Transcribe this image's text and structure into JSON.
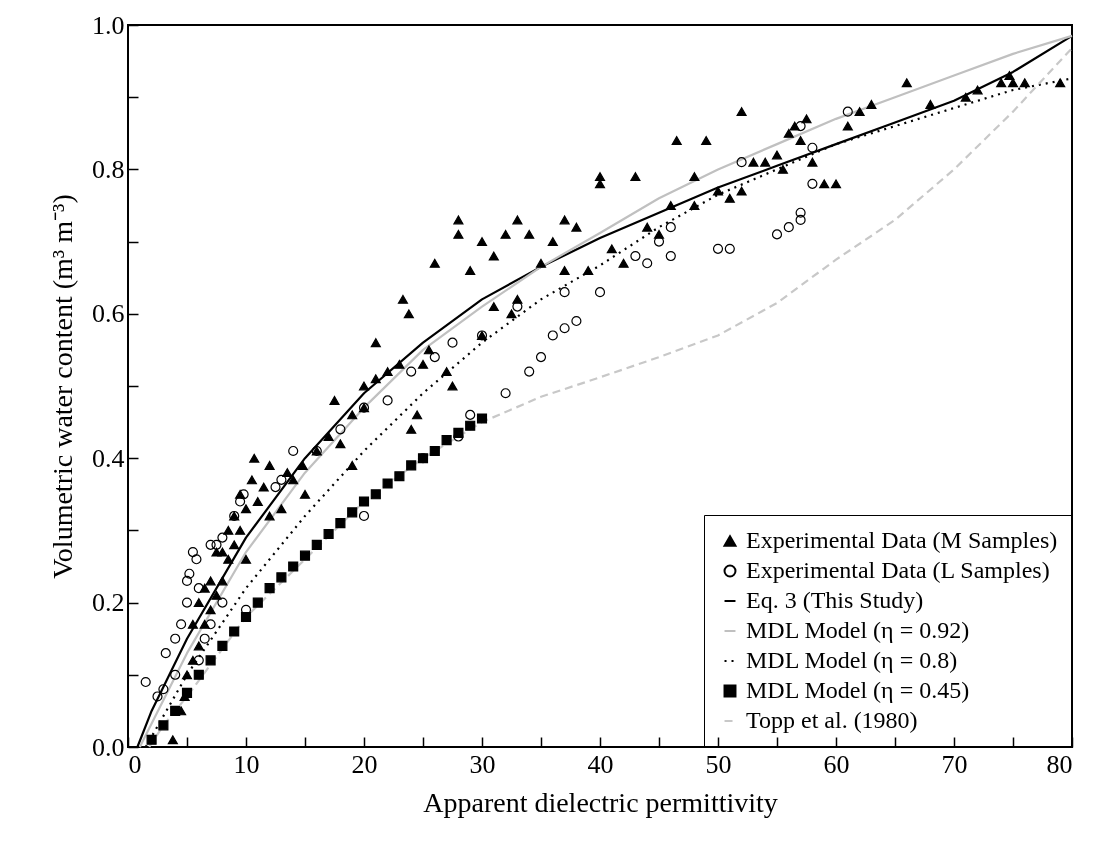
{
  "chart_data": {
    "type": "scatter",
    "xlabel": "Apparent dielectric permittivity",
    "ylabel": "Volumetric water content (m³ m⁻³)",
    "xlim": [
      0,
      80
    ],
    "ylim": [
      0,
      1.0
    ],
    "xticks": [
      0,
      {
        "value": 5,
        "label": null
      },
      10,
      {
        "value": 15,
        "label": null
      },
      20,
      {
        "value": 25,
        "label": null
      },
      30,
      {
        "value": 35,
        "label": null
      },
      40,
      {
        "value": 45,
        "label": null
      },
      50,
      {
        "value": 55,
        "label": null
      },
      60,
      {
        "value": 65,
        "label": null
      },
      70,
      {
        "value": 75,
        "label": null
      },
      80
    ],
    "yticks": [
      {
        "value": 0,
        "label": "0.0"
      },
      {
        "value": 0.1,
        "label": null
      },
      0.2,
      {
        "value": 0.3,
        "label": null
      },
      0.4,
      {
        "value": 0.5,
        "label": null
      },
      0.6,
      {
        "value": 0.7,
        "label": null
      },
      0.8,
      {
        "value": 0.9,
        "label": null
      },
      {
        "value": 1.0,
        "label": "1.0"
      }
    ],
    "grid": false,
    "legend": "bottom right",
    "series": [
      {
        "name": "Experimental Data (M Samples)",
        "type": "scatter",
        "marker": "triangle",
        "color": "#000000",
        "x": [
          3.8,
          4.5,
          4.8,
          5,
          5.5,
          5.5,
          6,
          6,
          6.5,
          6.5,
          7,
          7,
          7.5,
          7.5,
          8,
          8,
          8.5,
          8.5,
          9,
          9,
          9.5,
          9.5,
          10,
          10,
          10.5,
          10.7,
          11,
          11.5,
          12,
          12,
          13,
          13.5,
          14,
          14.8,
          15,
          16,
          17,
          17.5,
          18,
          19,
          19,
          20,
          20,
          21,
          21,
          22,
          23,
          23.3,
          23.8,
          24,
          24.5,
          25,
          25.5,
          26,
          27,
          27.5,
          28,
          28,
          29,
          30,
          30,
          31,
          31,
          32,
          32.5,
          33,
          33,
          34,
          35,
          36,
          37,
          37,
          38,
          39,
          40,
          40,
          41,
          42,
          43,
          44,
          45,
          46,
          46.5,
          48,
          48,
          49,
          50,
          51,
          52,
          52,
          53,
          54,
          55,
          55.5,
          56,
          56.5,
          57,
          57.5,
          58,
          59,
          60,
          61,
          62,
          63,
          66,
          68,
          71,
          72,
          74,
          74.7,
          75,
          76,
          79
        ],
        "values": [
          0.01,
          0.05,
          0.07,
          0.1,
          0.12,
          0.17,
          0.14,
          0.2,
          0.17,
          0.22,
          0.19,
          0.23,
          0.21,
          0.27,
          0.23,
          0.27,
          0.26,
          0.3,
          0.28,
          0.32,
          0.3,
          0.35,
          0.26,
          0.33,
          0.37,
          0.4,
          0.34,
          0.36,
          0.32,
          0.39,
          0.33,
          0.38,
          0.37,
          0.39,
          0.35,
          0.41,
          0.43,
          0.48,
          0.42,
          0.46,
          0.39,
          0.47,
          0.5,
          0.51,
          0.56,
          0.52,
          0.53,
          0.62,
          0.6,
          0.44,
          0.46,
          0.53,
          0.55,
          0.67,
          0.52,
          0.5,
          0.71,
          0.73,
          0.66,
          0.57,
          0.7,
          0.61,
          0.68,
          0.71,
          0.6,
          0.73,
          0.62,
          0.71,
          0.67,
          0.7,
          0.73,
          0.66,
          0.72,
          0.66,
          0.79,
          0.78,
          0.69,
          0.67,
          0.79,
          0.72,
          0.71,
          0.75,
          0.84,
          0.79,
          0.75,
          0.84,
          0.77,
          0.76,
          0.77,
          0.88,
          0.81,
          0.81,
          0.82,
          0.8,
          0.85,
          0.86,
          0.84,
          0.87,
          0.81,
          0.78,
          0.78,
          0.86,
          0.88,
          0.89,
          0.92,
          0.89,
          0.9,
          0.91,
          0.92,
          0.93,
          0.92,
          0.92,
          0.92
        ]
      },
      {
        "name": "Experimental Data (L Samples)",
        "type": "scatter",
        "marker": "circle",
        "color": "#000000",
        "x": [
          1.5,
          2.5,
          3,
          3.2,
          4,
          4,
          4.5,
          5,
          5,
          5.2,
          5.5,
          5.8,
          6,
          6,
          6.5,
          7,
          7,
          7.5,
          8,
          8,
          9,
          9.5,
          9.8,
          10,
          12.5,
          13,
          14,
          16,
          18,
          20,
          20,
          22,
          24,
          25,
          26,
          27.5,
          28,
          29,
          30,
          32,
          33,
          34,
          35,
          36,
          37,
          37,
          38,
          40,
          43,
          44,
          45,
          46,
          46,
          50,
          51,
          52,
          55,
          56,
          57,
          57,
          57,
          58,
          58,
          61
        ],
        "values": [
          0.09,
          0.07,
          0.08,
          0.13,
          0.1,
          0.15,
          0.17,
          0.2,
          0.23,
          0.24,
          0.27,
          0.26,
          0.22,
          0.12,
          0.15,
          0.17,
          0.28,
          0.28,
          0.29,
          0.2,
          0.32,
          0.34,
          0.35,
          0.19,
          0.36,
          0.37,
          0.41,
          0.41,
          0.44,
          0.47,
          0.32,
          0.48,
          0.52,
          0.4,
          0.54,
          0.56,
          0.43,
          0.46,
          0.57,
          0.49,
          0.61,
          0.52,
          0.54,
          0.57,
          0.63,
          0.58,
          0.59,
          0.63,
          0.68,
          0.67,
          0.7,
          0.72,
          0.68,
          0.69,
          0.69,
          0.81,
          0.71,
          0.72,
          0.73,
          0.74,
          0.86,
          0.83,
          0.78,
          0.88
        ]
      },
      {
        "name": "Eq. 3 (This Study)",
        "type": "line",
        "line_style": "solid",
        "color": "#000000",
        "x": [
          0.8,
          2,
          5,
          10,
          15,
          20,
          25,
          30,
          35,
          40,
          45,
          50,
          55,
          60,
          65,
          70,
          75,
          80
        ],
        "values": [
          0,
          0.05,
          0.15,
          0.29,
          0.4,
          0.49,
          0.56,
          0.62,
          0.665,
          0.705,
          0.74,
          0.775,
          0.805,
          0.835,
          0.865,
          0.895,
          0.935,
          0.985
        ]
      },
      {
        "name": "MDL Model (η = 0.92)",
        "type": "line",
        "line_style": "solid",
        "color": "#c0c0c0",
        "x": [
          1,
          5,
          10,
          15,
          20,
          25,
          30,
          35,
          40,
          45,
          50,
          55,
          60,
          65,
          70,
          75,
          80
        ],
        "values": [
          0,
          0.13,
          0.27,
          0.38,
          0.47,
          0.55,
          0.61,
          0.665,
          0.712,
          0.76,
          0.8,
          0.835,
          0.87,
          0.9,
          0.93,
          0.96,
          0.985
        ]
      },
      {
        "name": "MDL Model (η = 0.8)",
        "type": "line",
        "line_style": "dotted",
        "color": "#000000",
        "x": [
          1.5,
          5,
          10,
          15,
          20,
          25,
          30,
          35,
          40,
          45,
          50,
          55,
          60,
          65,
          70,
          75,
          80
        ],
        "values": [
          0,
          0.1,
          0.22,
          0.32,
          0.41,
          0.49,
          0.56,
          0.62,
          0.667,
          0.72,
          0.765,
          0.8,
          0.835,
          0.86,
          0.885,
          0.91,
          0.926
        ]
      },
      {
        "name": "MDL Model (η = 0.45)",
        "type": "scatter",
        "marker": "square",
        "color": "#000000",
        "x": [
          2,
          3,
          4,
          5,
          6,
          7,
          8,
          9,
          10,
          11,
          12,
          13,
          14,
          15,
          16,
          17,
          18,
          19,
          20,
          21,
          22,
          23,
          24,
          25,
          26,
          27,
          28,
          29,
          30
        ],
        "values": [
          0.01,
          0.03,
          0.05,
          0.075,
          0.1,
          0.12,
          0.14,
          0.16,
          0.18,
          0.2,
          0.22,
          0.235,
          0.25,
          0.265,
          0.28,
          0.295,
          0.31,
          0.325,
          0.34,
          0.35,
          0.365,
          0.375,
          0.39,
          0.4,
          0.41,
          0.425,
          0.435,
          0.445,
          0.455
        ]
      },
      {
        "name": "Topp et al. (1980)",
        "type": "line",
        "line_style": "dashed",
        "color": "#c8c8c8",
        "x": [
          1.8,
          3,
          5,
          10,
          15,
          20,
          25,
          30,
          35,
          40,
          45,
          50,
          55,
          60,
          65,
          70,
          75,
          80
        ],
        "values": [
          0,
          0.03,
          0.07,
          0.18,
          0.26,
          0.34,
          0.4,
          0.45,
          0.485,
          0.512,
          0.54,
          0.57,
          0.615,
          0.675,
          0.73,
          0.8,
          0.88,
          0.968
        ]
      }
    ]
  }
}
